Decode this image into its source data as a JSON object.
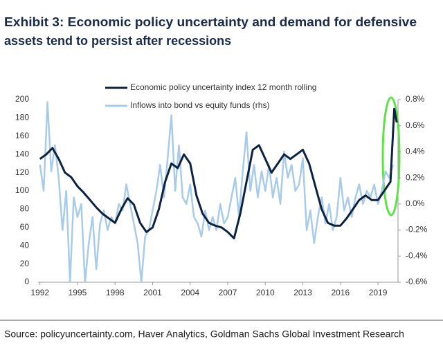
{
  "chart_data": {
    "type": "line",
    "title": [
      "Exhibit 3: Economic policy uncertainty and demand for defensive",
      "assets tend to persist after recessions"
    ],
    "source": "Source: policyuncertainty.com, Haver Analytics, Goldman Sachs Global Investment Research",
    "xlim": [
      1991.85,
      2020.6
    ],
    "xticks": [
      1992,
      1995,
      1998,
      2001,
      2004,
      2007,
      2010,
      2013,
      2016,
      2019
    ],
    "ylim": [
      0,
      200
    ],
    "yticks": [
      0,
      20,
      40,
      60,
      80,
      100,
      120,
      140,
      160,
      180,
      200
    ],
    "y2lim": [
      -0.6,
      0.8
    ],
    "y2ticks": [
      {
        "value": -0.6,
        "label": "-0.6%"
      },
      {
        "value": -0.4,
        "label": "-0.4%"
      },
      {
        "value": -0.2,
        "label": "-0.2%"
      },
      {
        "value": 0.0,
        "label": "0.0%"
      },
      {
        "value": 0.2,
        "label": "0.2%"
      },
      {
        "value": 0.4,
        "label": "0.4%"
      },
      {
        "value": 0.6,
        "label": "0.6%"
      },
      {
        "value": 0.8,
        "label": "0.8%"
      }
    ],
    "series": [
      {
        "name": "Inflows into bond vs equity funds (rhs)",
        "color": "#a9cbea",
        "axis": "y2",
        "x": [
          1992.0,
          1992.3,
          1992.6,
          1992.9,
          1993.2,
          1993.5,
          1993.8,
          1994.1,
          1994.4,
          1994.7,
          1995.0,
          1995.3,
          1995.6,
          1995.9,
          1996.2,
          1996.5,
          1996.8,
          1997.1,
          1997.4,
          1997.7,
          1998.0,
          1998.3,
          1998.6,
          1998.9,
          1999.2,
          1999.5,
          1999.8,
          2000.1,
          2000.4,
          2000.7,
          2001.0,
          2001.3,
          2001.6,
          2001.9,
          2002.2,
          2002.5,
          2002.8,
          2003.1,
          2003.4,
          2003.7,
          2004.0,
          2004.3,
          2004.6,
          2004.9,
          2005.2,
          2005.5,
          2005.8,
          2006.1,
          2006.4,
          2006.7,
          2007.0,
          2007.3,
          2007.6,
          2007.9,
          2008.2,
          2008.5,
          2008.8,
          2009.1,
          2009.4,
          2009.7,
          2010.0,
          2010.3,
          2010.6,
          2010.9,
          2011.2,
          2011.5,
          2011.8,
          2012.1,
          2012.4,
          2012.7,
          2013.0,
          2013.3,
          2013.6,
          2013.9,
          2014.2,
          2014.5,
          2014.8,
          2015.1,
          2015.4,
          2015.7,
          2016.0,
          2016.3,
          2016.6,
          2016.9,
          2017.2,
          2017.5,
          2017.8,
          2018.1,
          2018.4,
          2018.7,
          2019.0,
          2019.3,
          2019.6,
          2019.9,
          2020.2
        ],
        "values": [
          0.3,
          0.1,
          0.78,
          0.25,
          0.45,
          0.2,
          -0.2,
          0.1,
          -0.6,
          0.05,
          -0.1,
          0.0,
          -0.6,
          -0.3,
          -0.1,
          -0.5,
          -0.15,
          -0.05,
          -0.2,
          -0.1,
          -0.15,
          0.0,
          -0.05,
          0.15,
          0.0,
          -0.15,
          -0.3,
          -0.6,
          -0.25,
          -0.2,
          -0.05,
          0.1,
          0.3,
          0.05,
          0.35,
          0.68,
          0.1,
          0.45,
          0.05,
          0.0,
          0.15,
          -0.1,
          -0.15,
          -0.25,
          -0.05,
          -0.2,
          -0.1,
          -0.2,
          0.0,
          -0.15,
          -0.1,
          0.05,
          0.2,
          -0.1,
          0.25,
          0.55,
          0.1,
          0.3,
          0.05,
          0.25,
          0.1,
          0.3,
          0.05,
          0.2,
          0.0,
          0.4,
          0.2,
          0.3,
          0.1,
          0.15,
          0.35,
          -0.2,
          -0.05,
          -0.3,
          -0.1,
          0.05,
          -0.15,
          0.0,
          -0.2,
          -0.1,
          0.2,
          -0.05,
          0.05,
          -0.1,
          0.05,
          0.15,
          0.0,
          0.1,
          0.05,
          0.15,
          0.0,
          0.1,
          0.25,
          0.2,
          0.3
        ]
      },
      {
        "name": "Economic policy uncertainty index 12 month rolling",
        "color": "#0d2240",
        "x": [
          1992.0,
          1992.5,
          1993.0,
          1993.5,
          1994.0,
          1994.5,
          1995.0,
          1995.5,
          1996.0,
          1996.5,
          1997.0,
          1997.5,
          1998.0,
          1998.5,
          1999.0,
          1999.5,
          2000.0,
          2000.5,
          2001.0,
          2001.5,
          2002.0,
          2002.5,
          2003.0,
          2003.5,
          2004.0,
          2004.5,
          2005.0,
          2005.5,
          2006.0,
          2006.5,
          2007.0,
          2007.5,
          2008.0,
          2008.5,
          2009.0,
          2009.5,
          2010.0,
          2010.5,
          2011.0,
          2011.5,
          2012.0,
          2012.5,
          2013.0,
          2013.5,
          2014.0,
          2014.5,
          2015.0,
          2015.5,
          2016.0,
          2016.5,
          2017.0,
          2017.5,
          2018.0,
          2018.5,
          2019.0,
          2019.5,
          2020.0,
          2020.3,
          2020.5
        ],
        "values": [
          135,
          140,
          147,
          135,
          120,
          115,
          105,
          98,
          90,
          82,
          75,
          70,
          65,
          80,
          92,
          85,
          65,
          55,
          60,
          80,
          110,
          130,
          125,
          140,
          130,
          95,
          75,
          65,
          62,
          60,
          55,
          48,
          75,
          110,
          145,
          150,
          135,
          120,
          130,
          140,
          135,
          140,
          145,
          130,
          105,
          80,
          65,
          62,
          62,
          70,
          80,
          90,
          95,
          90,
          90,
          100,
          110,
          190,
          175
        ]
      }
    ]
  }
}
